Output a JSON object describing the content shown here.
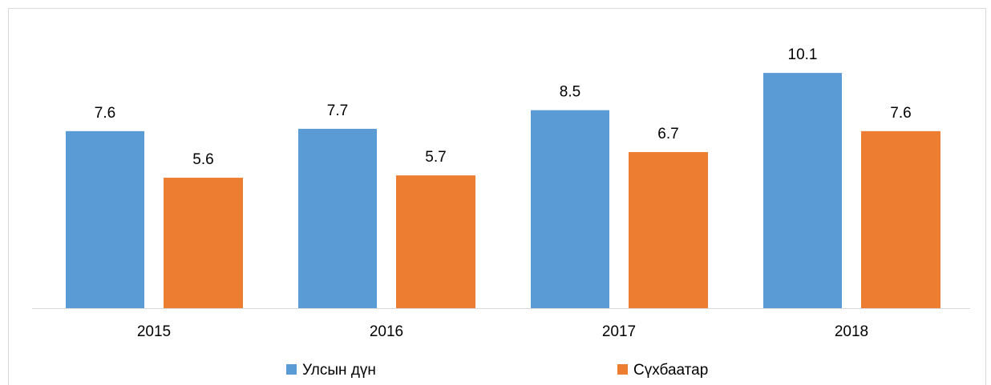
{
  "chart_data": {
    "type": "bar",
    "categories": [
      "2015",
      "2016",
      "2017",
      "2018"
    ],
    "series": [
      {
        "name": "Улсын дүн",
        "color": "#5b9bd5",
        "values": [
          7.6,
          7.7,
          8.5,
          10.1
        ]
      },
      {
        "name": "Сүхбаатар",
        "color": "#ed7d31",
        "values": [
          5.6,
          5.7,
          6.7,
          7.6
        ]
      }
    ]
  }
}
